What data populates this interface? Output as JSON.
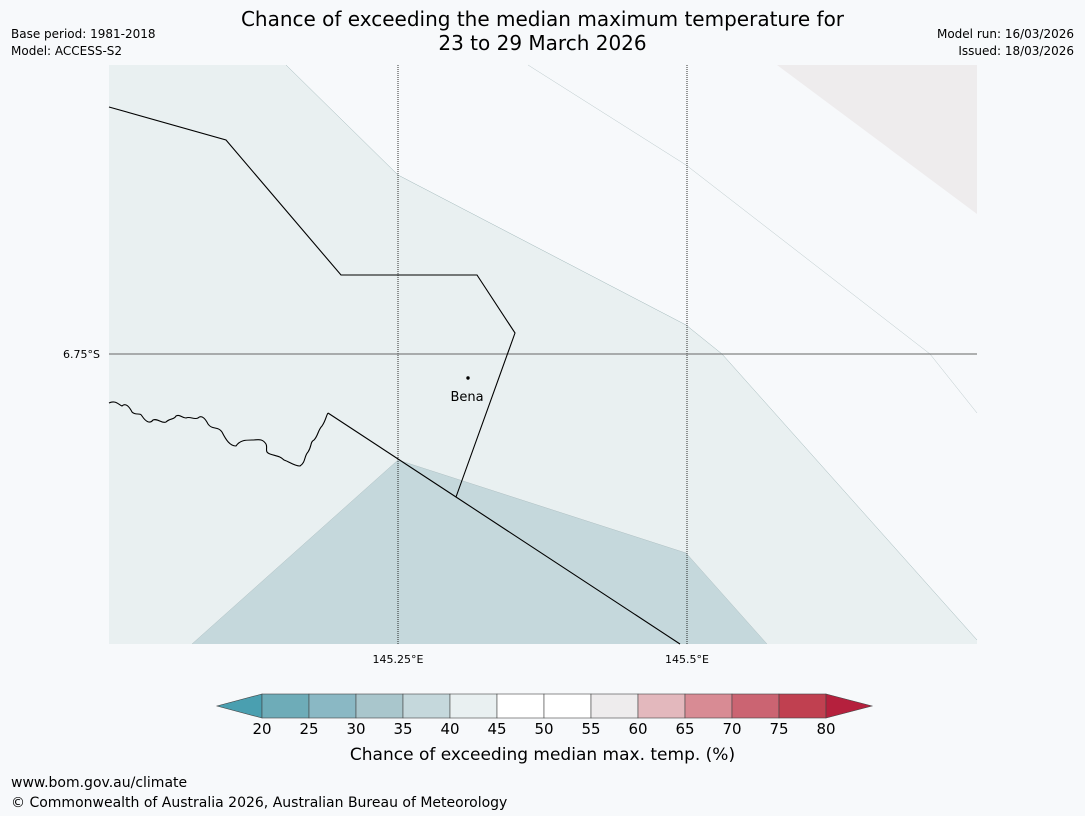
{
  "title": {
    "line1": "Chance of exceeding the median maximum temperature for",
    "line2": "23 to 29 March 2026"
  },
  "meta": {
    "base_period": "Base period: 1981-2018",
    "model": "Model: ACCESS-S2",
    "model_run": "Model run: 16/03/2026",
    "issued": "Issued: 18/03/2026"
  },
  "map": {
    "lat_label": "6.75°S",
    "lon_labels": [
      "145.25°E",
      "145.5°E"
    ],
    "place": "Bena",
    "regions": [
      {
        "band": "35-40",
        "color": "#c5d8dc"
      },
      {
        "band": "40-45",
        "color": "#e9f0f1"
      },
      {
        "band": "45-55",
        "color": "#f7f9fb"
      },
      {
        "band": "55-60",
        "color": "#eeeced"
      }
    ]
  },
  "colorbar": {
    "title": "Chance of exceeding median max. temp. (%)",
    "ticks": [
      "20",
      "25",
      "30",
      "35",
      "40",
      "45",
      "50",
      "55",
      "60",
      "65",
      "70",
      "75",
      "80"
    ],
    "below_color": "#4a9fb0",
    "above_color": "#b5203d",
    "colors": [
      "#6eacb8",
      "#8ab8c4",
      "#a9c6cc",
      "#c5d8dc",
      "#e9f0f1",
      "#ffffff",
      "#ffffff",
      "#eeeced",
      "#e3b8bd",
      "#d88b94",
      "#cb6472",
      "#c04050"
    ]
  },
  "footer": {
    "url": "www.bom.gov.au/climate",
    "copyright": "© Commonwealth of Australia 2026, Australian Bureau of Meteorology"
  }
}
